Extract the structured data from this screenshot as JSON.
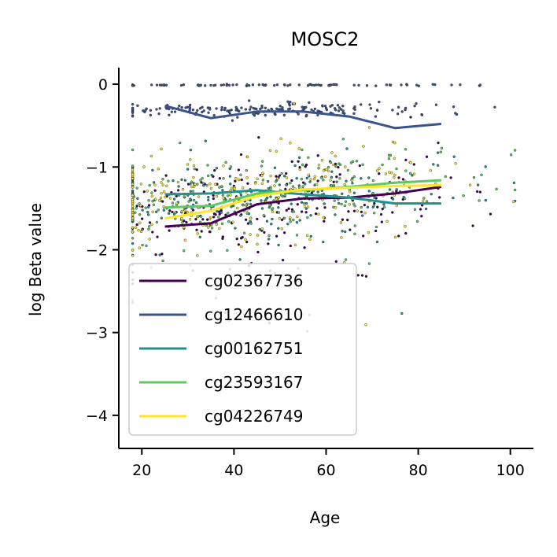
{
  "chart_data": {
    "type": "line",
    "title": "MOSC2",
    "xlabel": "Age",
    "ylabel": "log Beta value",
    "xlim": [
      15,
      105
    ],
    "ylim": [
      -4.4,
      0.2
    ],
    "xticks": [
      20,
      40,
      60,
      80,
      100
    ],
    "yticks": [
      0,
      -1,
      -2,
      -3,
      -4
    ],
    "xtick_labels": [
      "20",
      "40",
      "60",
      "80",
      "100"
    ],
    "ytick_labels": [
      "0",
      "−1",
      "−2",
      "−3",
      "−4"
    ],
    "grid": false,
    "legend_position": "lower-left",
    "scatter_overlay": true,
    "series": [
      {
        "name": "cg02367736",
        "color": "#440154",
        "x": [
          25,
          35,
          45,
          55,
          65,
          75,
          85
        ],
        "y": [
          -1.72,
          -1.68,
          -1.45,
          -1.38,
          -1.37,
          -1.32,
          -1.24
        ],
        "scatter_center": -1.45,
        "scatter_spread": 0.32
      },
      {
        "name": "cg12466610",
        "color": "#3b528b",
        "x": [
          25,
          35,
          45,
          55,
          65,
          75,
          85
        ],
        "y": [
          -0.26,
          -0.41,
          -0.33,
          -0.33,
          -0.39,
          -0.53,
          -0.48
        ],
        "scatter_center": -0.31,
        "scatter_spread": 0.04
      },
      {
        "name": "cg00162751",
        "color": "#21918c",
        "x": [
          25,
          35,
          45,
          55,
          65,
          75,
          85
        ],
        "y": [
          -1.33,
          -1.32,
          -1.28,
          -1.33,
          -1.37,
          -1.44,
          -1.44
        ],
        "scatter_center": -1.35,
        "scatter_spread": 0.22
      },
      {
        "name": "cg23593167",
        "color": "#5ec962",
        "x": [
          25,
          35,
          45,
          55,
          65,
          75,
          85
        ],
        "y": [
          -1.49,
          -1.47,
          -1.32,
          -1.28,
          -1.24,
          -1.19,
          -1.16
        ],
        "scatter_center": -1.3,
        "scatter_spread": 0.24
      },
      {
        "name": "cg04226749",
        "color": "#fde725",
        "x": [
          25,
          35,
          45,
          55,
          65,
          75,
          85
        ],
        "y": [
          -1.62,
          -1.53,
          -1.35,
          -1.27,
          -1.25,
          -1.23,
          -1.22
        ],
        "scatter_center": -1.3,
        "scatter_spread": 0.3
      }
    ]
  }
}
